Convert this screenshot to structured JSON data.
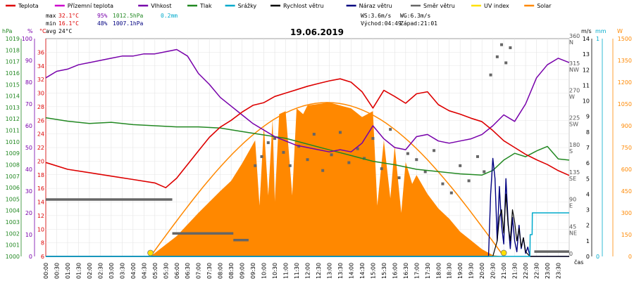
{
  "chart_data": {
    "type": "line",
    "title": "19.06.2019",
    "legend": [
      {
        "label": "Teplota",
        "color": "#dd0000"
      },
      {
        "label": "Přízemní teplota",
        "color": "#cc00cc"
      },
      {
        "label": "Vlhkost",
        "color": "#7700aa"
      },
      {
        "label": "Tlak",
        "color": "#228822"
      },
      {
        "label": "Srážky",
        "color": "#00aacc"
      },
      {
        "label": "Rychlost větru",
        "color": "#000000"
      },
      {
        "label": "Náraz větru",
        "color": "#000080"
      },
      {
        "label": "Směr větru",
        "color": "#666666"
      },
      {
        "label": "UV index",
        "color": "#ffe000"
      },
      {
        "label": "Solar",
        "color": "#ff8800"
      }
    ],
    "stats": {
      "max_label": "max",
      "max_temp": "32.1°C",
      "max_hum": "95%",
      "max_press": "1012.5hPa",
      "max_rain": "0.2mm",
      "min_label": "min",
      "min_temp": "16.1°C",
      "min_hum": "48%",
      "min_press": "1007.1hPa",
      "avg_label": "avg",
      "avg_temp": "24°C",
      "ws": "WS:3.6m/s",
      "wg": "WG:6.3m/s",
      "sunrise": "Východ:04:49",
      "sunset": "Západ:21:01"
    },
    "axis_units": {
      "hpa": "hPa",
      "pct": "%",
      "degc": "°C",
      "ms": "m/s",
      "mm": "mm",
      "w": "W",
      "cas": "čas"
    },
    "axes": {
      "pressure": {
        "range": [
          1000,
          1019
        ],
        "ticks": [
          "1000",
          "1001",
          "1002",
          "1003",
          "1004",
          "1005",
          "1006",
          "1007",
          "1008",
          "1009",
          "1010",
          "1011",
          "1012",
          "1013",
          "1014",
          "1015",
          "1016",
          "1017",
          "1018",
          "1019"
        ]
      },
      "humidity": {
        "range": [
          0,
          100
        ],
        "ticks": [
          "0",
          "10",
          "20",
          "30",
          "40",
          "50",
          "60",
          "70",
          "80",
          "90",
          "100"
        ]
      },
      "temperature": {
        "range": [
          6,
          38
        ],
        "ticks": [
          "6",
          "8",
          "10",
          "12",
          "14",
          "16",
          "18",
          "20",
          "22",
          "24",
          "26",
          "28",
          "30",
          "32",
          "34",
          "36"
        ]
      },
      "direction": {
        "range": [
          0,
          360
        ],
        "ticks": [
          {
            "v": "0",
            "c": ""
          },
          {
            "v": "45",
            "c": "NE"
          },
          {
            "v": "90",
            "c": "E"
          },
          {
            "v": "135",
            "c": "SE"
          },
          {
            "v": "180",
            "c": "S"
          },
          {
            "v": "225",
            "c": "SW"
          },
          {
            "v": "270",
            "c": "W"
          },
          {
            "v": "315",
            "c": "NW"
          },
          {
            "v": "360",
            "c": "N"
          }
        ]
      },
      "wind": {
        "range": [
          0,
          14
        ],
        "ticks": [
          "0",
          "1",
          "2",
          "3",
          "4",
          "5",
          "6",
          "7",
          "8",
          "9",
          "10",
          "11",
          "12",
          "13",
          "14"
        ]
      },
      "rain": {
        "range": [
          0,
          1
        ],
        "ticks": [
          "0",
          "1"
        ]
      },
      "solar": {
        "range": [
          0,
          1500
        ],
        "ticks": [
          "0",
          "150",
          "300",
          "450",
          "600",
          "750",
          "900",
          "1050",
          "1200",
          "1350",
          "1500"
        ]
      }
    },
    "time_labels": [
      "00:00",
      "00:30",
      "01:00",
      "01:30",
      "02:00",
      "02:30",
      "03:00",
      "03:30",
      "04:00",
      "04:30",
      "05:00",
      "05:30",
      "06:00",
      "06:30",
      "07:00",
      "07:30",
      "08:00",
      "08:30",
      "09:00",
      "09:30",
      "10:00",
      "10:30",
      "11:00",
      "11:30",
      "12:00",
      "12:30",
      "13:00",
      "13:30",
      "14:00",
      "14:30",
      "15:00",
      "15:30",
      "16:00",
      "16:30",
      "17:00",
      "17:30",
      "18:00",
      "18:30",
      "19:00",
      "19:30",
      "20:00",
      "20:30",
      "21:00",
      "21:30",
      "22:00",
      "22:30",
      "23:00",
      "23:30"
    ],
    "temperature_c": {
      "t": [
        0,
        1,
        2,
        3,
        4,
        5,
        5.5,
        6,
        6.5,
        7,
        7.5,
        8,
        8.5,
        9,
        9.5,
        10,
        10.5,
        11,
        11.5,
        12,
        12.5,
        13,
        13.5,
        14,
        14.5,
        15,
        15.5,
        16,
        16.5,
        17,
        17.5,
        18,
        18.5,
        19,
        19.5,
        20,
        20.5,
        21,
        21.5,
        22,
        22.5,
        23,
        23.5,
        24
      ],
      "v": [
        19.8,
        18.8,
        18.3,
        17.8,
        17.3,
        16.8,
        16.1,
        17.5,
        19.5,
        21.5,
        23.5,
        25,
        26,
        27.2,
        28.2,
        28.6,
        29.5,
        30,
        30.5,
        31,
        31.4,
        31.8,
        32.1,
        31.6,
        30.2,
        27.8,
        30.4,
        29.5,
        28.5,
        29.9,
        30.2,
        28.3,
        27.4,
        26.9,
        26.3,
        25.8,
        24.5,
        23,
        22,
        21,
        20.2,
        19.5,
        18.6,
        17.9
      ]
    },
    "humidity_pct": {
      "t": [
        0,
        0.5,
        1,
        1.5,
        2,
        2.5,
        3,
        3.5,
        4,
        4.5,
        5,
        5.5,
        6,
        6.5,
        7,
        7.5,
        8,
        8.5,
        9,
        9.5,
        10,
        10.5,
        11,
        11.5,
        12,
        12.5,
        13,
        13.5,
        14,
        14.5,
        15,
        15.5,
        16,
        16.5,
        17,
        17.5,
        18,
        18.5,
        19,
        19.5,
        20,
        20.5,
        21,
        21.5,
        22,
        22.5,
        23,
        23.5,
        24
      ],
      "v": [
        82,
        85,
        86,
        88,
        89,
        90,
        91,
        92,
        92,
        93,
        93,
        94,
        95,
        92,
        84,
        79,
        73,
        69,
        65,
        61,
        58,
        55,
        53,
        51,
        50,
        49,
        48,
        49,
        48,
        52,
        60,
        54,
        50,
        49,
        55,
        56,
        53,
        52,
        53,
        54,
        56,
        60,
        65,
        62,
        70,
        82,
        88,
        91,
        89
      ]
    },
    "pressure_hpa": {
      "t": [
        0,
        1,
        2,
        3,
        4,
        5,
        6,
        7,
        8,
        9,
        10,
        11,
        12,
        13,
        14,
        15,
        16,
        17,
        18,
        19,
        20,
        20.5,
        21,
        21.5,
        22,
        22.5,
        23,
        23.5,
        24
      ],
      "v": [
        1012.1,
        1011.8,
        1011.6,
        1011.7,
        1011.5,
        1011.4,
        1011.3,
        1011.3,
        1011.2,
        1010.9,
        1010.6,
        1010.3,
        1009.8,
        1009.3,
        1008.8,
        1008.3,
        1008.0,
        1007.6,
        1007.4,
        1007.2,
        1007.1,
        1007.5,
        1008.4,
        1009.0,
        1008.7,
        1009.2,
        1009.6,
        1008.5,
        1008.4
      ]
    },
    "wind_speed_ms": {
      "t": [
        0,
        20.5,
        20.7,
        20.8,
        20.9,
        21.0,
        21.1,
        21.2,
        21.3,
        21.4,
        21.5,
        21.6,
        21.7,
        21.8,
        21.9,
        22.0,
        22.2,
        24
      ],
      "v": [
        0,
        0,
        1.0,
        2.5,
        3.0,
        1.5,
        4.0,
        2.0,
        1.0,
        3.0,
        2.2,
        1.0,
        1.8,
        0.6,
        1.2,
        0.3,
        0,
        0
      ]
    },
    "wind_gust_ms": {
      "t": [
        0,
        20.3,
        20.4,
        20.5,
        20.6,
        20.7,
        20.8,
        20.9,
        21.0,
        21.1,
        21.2,
        21.3,
        21.4,
        21.5,
        21.6,
        21.7,
        21.8,
        21.9,
        22.0,
        22.1,
        22.2,
        24
      ],
      "v": [
        0,
        0,
        4.0,
        6.3,
        5.0,
        1.0,
        4.5,
        2.0,
        0.8,
        5.0,
        2.2,
        0.5,
        2.5,
        1.0,
        0.3,
        2.0,
        0.5,
        1.2,
        0.2,
        0.6,
        0,
        0
      ]
    },
    "rain_mm": {
      "t": [
        0,
        22.2,
        22.21,
        22.3,
        22.31,
        24
      ],
      "v": [
        0,
        0,
        0.1,
        0.1,
        0.2,
        0.2
      ]
    },
    "wind_dir_deg": {
      "segments": [
        {
          "from": 0,
          "to": 5.8,
          "v": 94
        },
        {
          "from": 5.8,
          "to": 8.6,
          "v": 38
        },
        {
          "from": 8.6,
          "to": 9.3,
          "v": 27
        },
        {
          "from": 22.4,
          "to": 24,
          "v": 8
        }
      ],
      "scatter_t": [
        9.6,
        9.9,
        10.2,
        10.5,
        10.9,
        11.2,
        11.6,
        12.0,
        12.3,
        12.7,
        13.1,
        13.5,
        13.9,
        14.3,
        14.6,
        15.0,
        15.4,
        15.8,
        16.2,
        16.6,
        17.0,
        17.4,
        17.8,
        18.2,
        18.6,
        19.0,
        19.4,
        19.8,
        20.1,
        20.4,
        20.7,
        20.9,
        21.1,
        21.3
      ],
      "scatter_v": [
        150,
        165,
        188,
        195,
        172,
        150,
        182,
        160,
        202,
        142,
        168,
        205,
        155,
        178,
        162,
        195,
        145,
        210,
        130,
        170,
        160,
        140,
        175,
        120,
        105,
        150,
        125,
        165,
        140,
        300,
        330,
        350,
        320,
        345
      ]
    },
    "solar_wm2": {
      "t": [
        4.8,
        6,
        7,
        8,
        8.5,
        9,
        9.3,
        9.6,
        9.8,
        10,
        10.2,
        10.4,
        10.5,
        10.7,
        11,
        11.3,
        11.5,
        11.8,
        12,
        12.5,
        13,
        13.5,
        14,
        14.5,
        15,
        15.2,
        15.5,
        15.8,
        16,
        16.3,
        16.5,
        16.8,
        17,
        17.5,
        18,
        18.5,
        19,
        19.5,
        20,
        20.5,
        21.0
      ],
      "v": [
        0,
        140,
        300,
        450,
        520,
        640,
        720,
        800,
        350,
        900,
        420,
        950,
        380,
        980,
        1000,
        420,
        1020,
        980,
        1040,
        1050,
        1060,
        1040,
        1020,
        960,
        1000,
        350,
        800,
        400,
        760,
        300,
        650,
        500,
        560,
        430,
        330,
        260,
        170,
        110,
        50,
        8,
        0
      ]
    },
    "uv_markers_t": [
      4.8,
      21.0
    ]
  }
}
